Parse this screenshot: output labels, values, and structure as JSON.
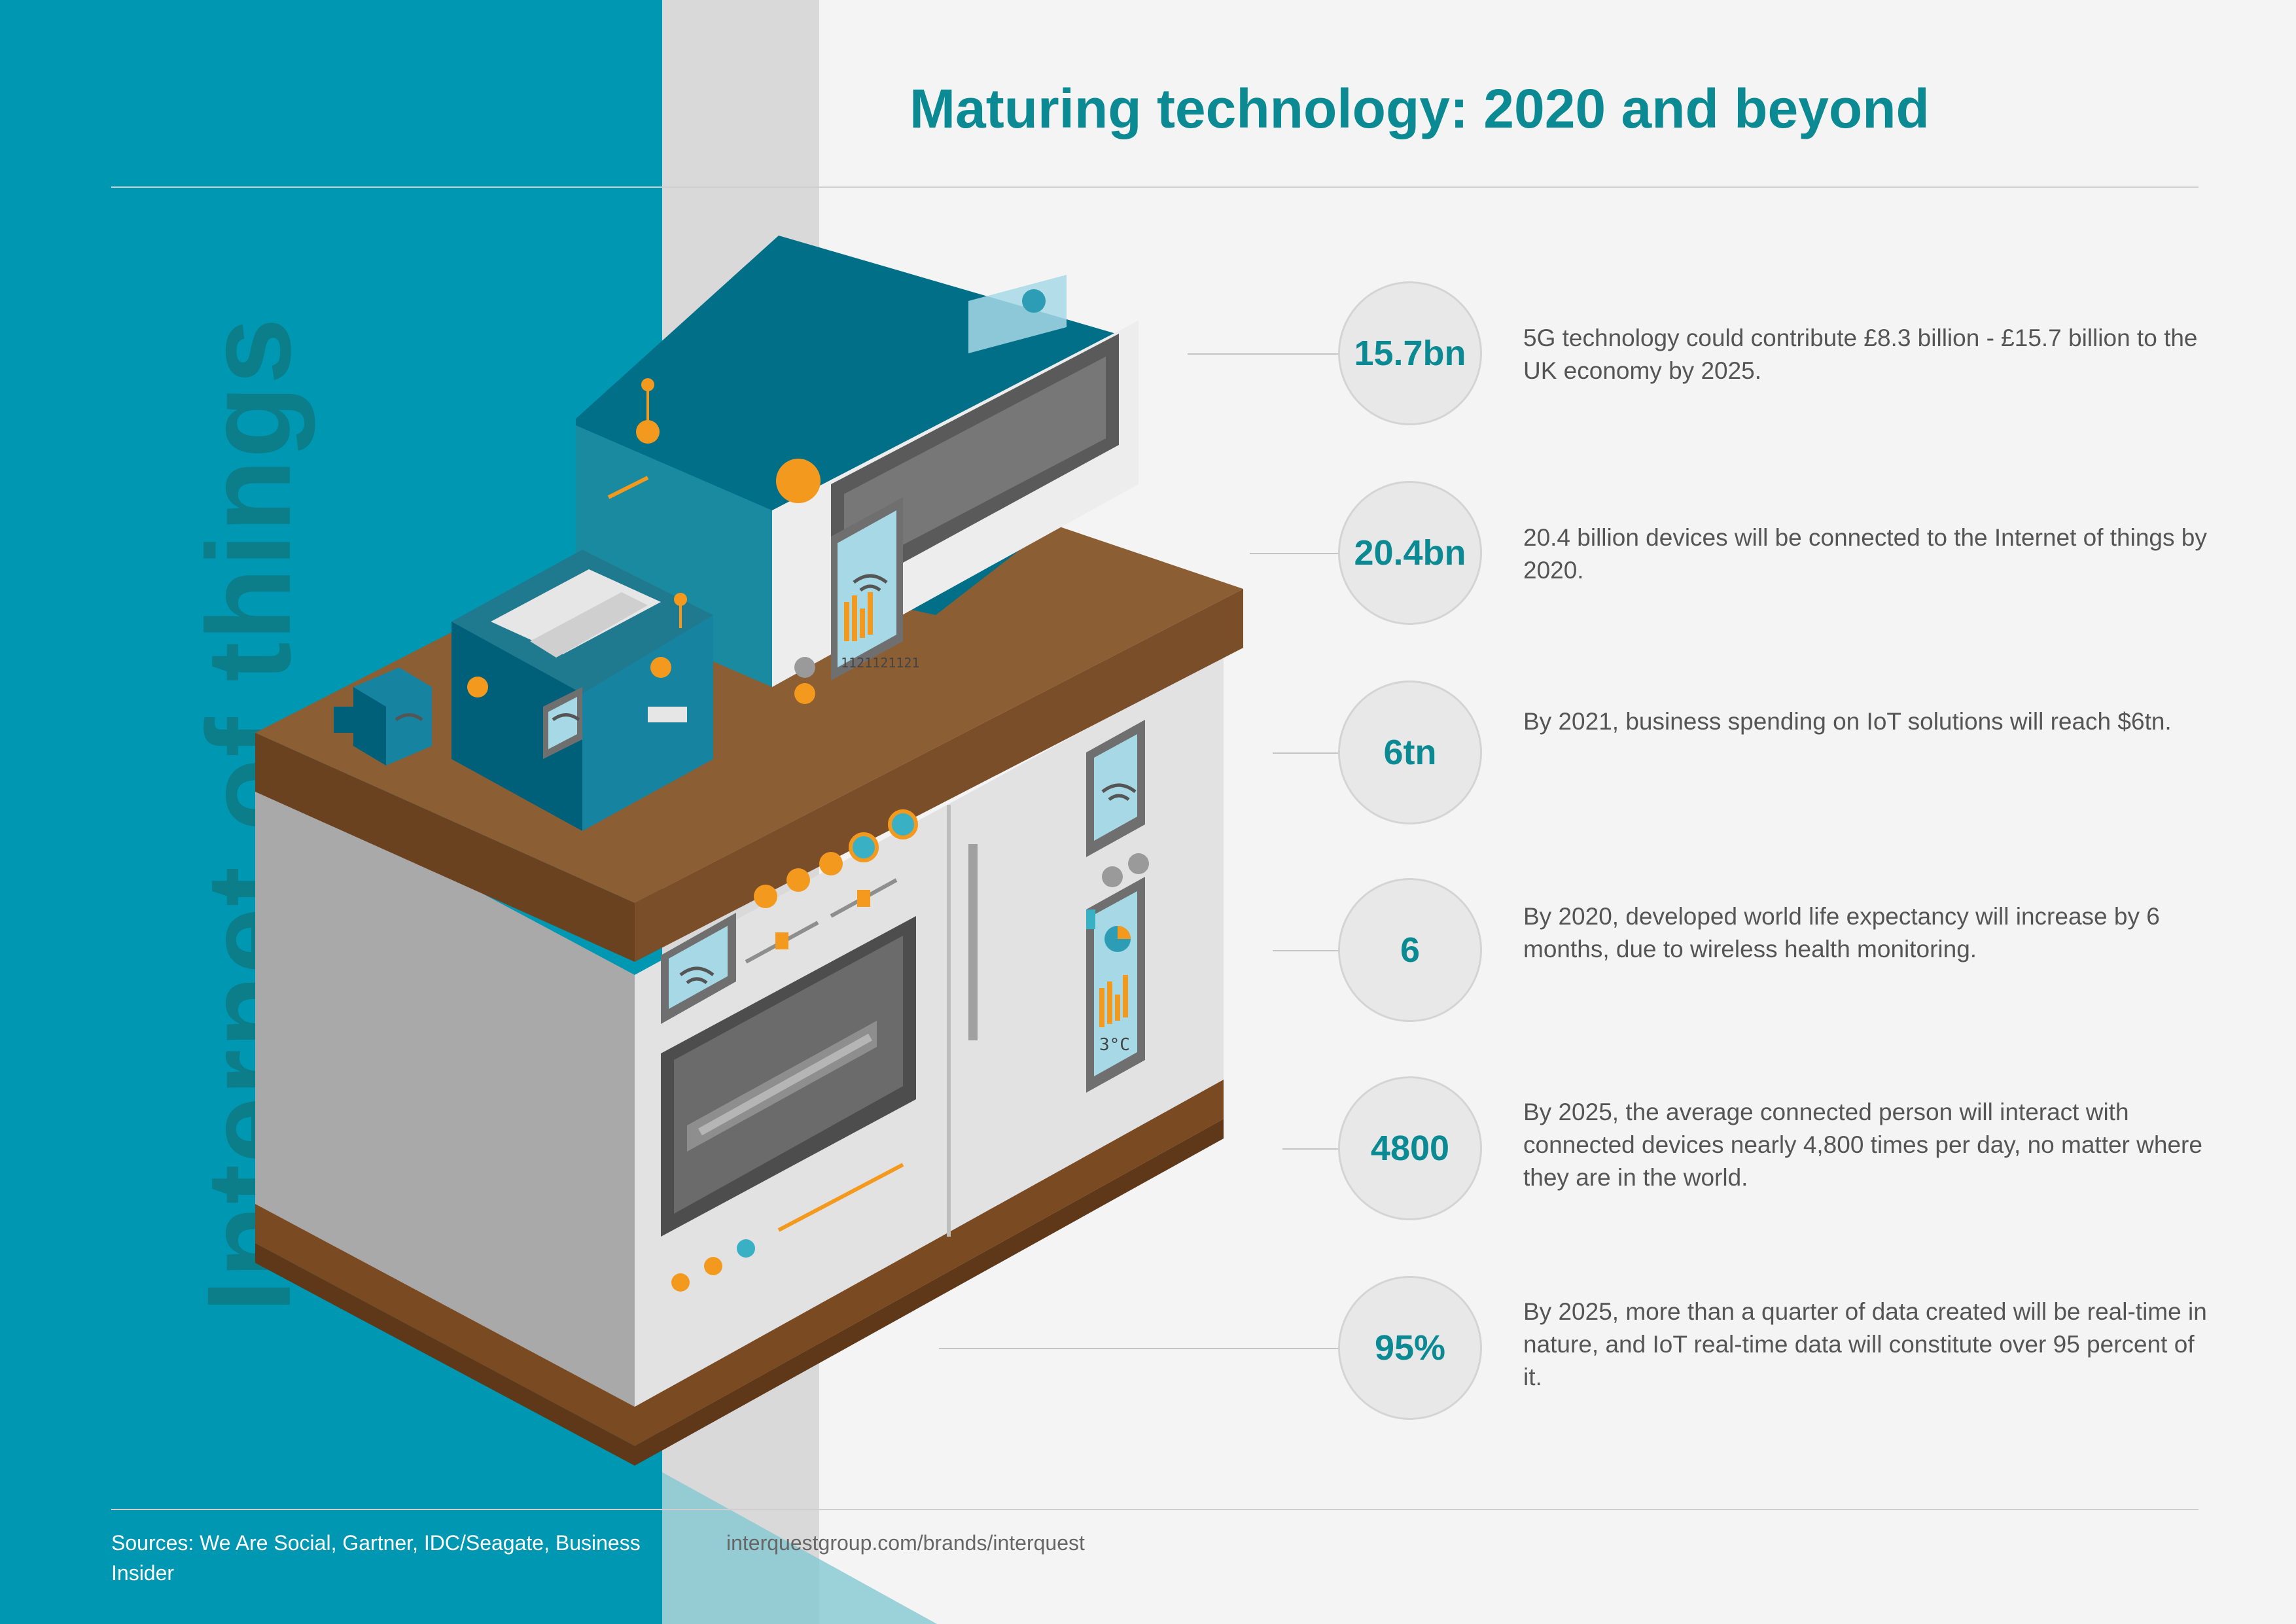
{
  "side_title": "Internet of things",
  "title": "Maturing technology: 2020 and beyond",
  "stats": [
    {
      "value": "15.7bn",
      "text": "5G technology could contribute £8.3 billion - £15.7 billion to the UK economy by 2025."
    },
    {
      "value": "20.4bn",
      "text": "20.4 billion devices will be connected to the Internet of things by 2020."
    },
    {
      "value": "6tn",
      "text": "By 2021, business spending on IoT solutions will reach $6tn."
    },
    {
      "value": "6",
      "text": "By 2020, developed world life expectancy will increase by 6 months, due to wireless health monitoring."
    },
    {
      "value": "4800",
      "text": "By 2025, the average connected person will interact with connected devices nearly 4,800 times per day, no matter where they are in the world."
    },
    {
      "value": "95%",
      "text": "By 2025, more than a quarter of data created will be real-time in nature, and IoT real-time data will constitute over 95 percent of it."
    }
  ],
  "illustration": {
    "display_code": "1121121121",
    "temperature": "3°C"
  },
  "footer": {
    "sources": "Sources: We Are Social, Gartner, IDC/Seagate, Business Insider",
    "url": "interquestgroup.com/brands/interquest"
  },
  "colors": {
    "teal": "#0097b2",
    "dark_teal": "#0b7e89",
    "title_teal": "#0b8a93",
    "wood": "#8b5e34",
    "orange": "#f39a1e",
    "appliance_white": "#e8e8e8",
    "screen_blue": "#a6d8e6"
  },
  "icons": [
    "wifi-icon",
    "bar-chart-icon",
    "pie-chart-icon"
  ]
}
